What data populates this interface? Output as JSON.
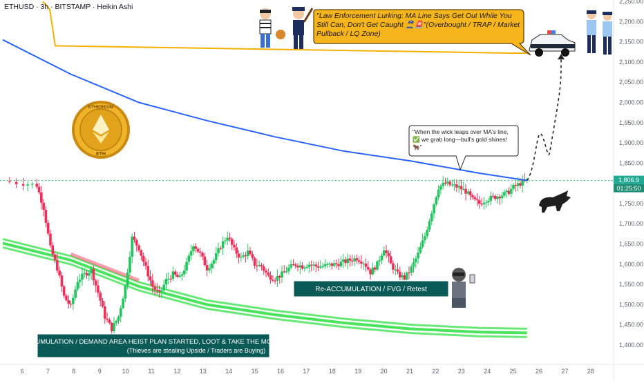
{
  "header": {
    "symbol_line": "ETHUSD · 3h · BITSTAMP · Heikin Ashi"
  },
  "colors": {
    "bull": "#22c55e",
    "bear": "#ef2f5a",
    "ma_line": "#2962ff",
    "orange_line": "#f5b000",
    "last_price_label": "#22ab94",
    "time_label": "#1e8c73",
    "green_band": "#35e04a",
    "red_band": "#ff4d6d",
    "zone_box": "#0a5a57"
  },
  "chart_data": {
    "type": "candlestick",
    "y_axis": {
      "range": [
        1375,
        2260
      ],
      "ticks": [
        2250,
        2200,
        2150,
        2100,
        2050,
        2000,
        1950,
        1900,
        1850,
        1750,
        1700,
        1650,
        1600,
        1550,
        1500,
        1450,
        1400
      ],
      "tick_labels": [
        "2,250.00",
        "2,200.00",
        "2,150.00",
        "2,100.00",
        "2,050.00",
        "2,000.00",
        "1,950.00",
        "1,900.00",
        "1,850.00",
        "1,750.00",
        "1,700.00",
        "1,650.00",
        "1,600.00",
        "1,550.00",
        "1,500.00",
        "1,450.00",
        "1,400.00"
      ]
    },
    "x_axis": {
      "day_labels": [
        "6",
        "7",
        "8",
        "9",
        "10",
        "11",
        "12",
        "13",
        "14",
        "15",
        "16",
        "17",
        "18",
        "19",
        "20",
        "21",
        "22",
        "23",
        "24",
        "25",
        "26",
        "27",
        "28"
      ]
    },
    "last_price": {
      "label": "1,806.9",
      "value": 1806.9,
      "countdown": "01:25:50"
    },
    "candle_close_path": [
      [
        0,
        1805
      ],
      [
        3,
        1800
      ],
      [
        5,
        1795
      ],
      [
        6,
        1740
      ],
      [
        7,
        1640
      ],
      [
        8,
        1590
      ],
      [
        9,
        1520
      ],
      [
        10,
        1495
      ],
      [
        11,
        1560
      ],
      [
        12,
        1575
      ],
      [
        13,
        1585
      ],
      [
        14,
        1530
      ],
      [
        15,
        1470
      ],
      [
        16,
        1440
      ],
      [
        17,
        1470
      ],
      [
        18,
        1545
      ],
      [
        19,
        1665
      ],
      [
        20,
        1640
      ],
      [
        21,
        1590
      ],
      [
        22,
        1545
      ],
      [
        23,
        1525
      ],
      [
        24,
        1560
      ],
      [
        25,
        1575
      ],
      [
        26,
        1565
      ],
      [
        27,
        1600
      ],
      [
        28,
        1650
      ],
      [
        29,
        1625
      ],
      [
        30,
        1590
      ],
      [
        31,
        1610
      ],
      [
        32,
        1645
      ],
      [
        33,
        1670
      ],
      [
        34,
        1635
      ],
      [
        35,
        1615
      ],
      [
        36,
        1630
      ],
      [
        37,
        1600
      ],
      [
        38,
        1595
      ],
      [
        39,
        1570
      ],
      [
        40,
        1565
      ],
      [
        41,
        1575
      ],
      [
        42,
        1590
      ],
      [
        43,
        1600
      ],
      [
        44,
        1595
      ],
      [
        45,
        1600
      ],
      [
        46,
        1595
      ],
      [
        47,
        1595
      ],
      [
        48,
        1598
      ],
      [
        49,
        1600
      ],
      [
        50,
        1605
      ],
      [
        51,
        1610
      ],
      [
        52,
        1615
      ],
      [
        53,
        1605
      ],
      [
        54,
        1580
      ],
      [
        55,
        1600
      ],
      [
        56,
        1640
      ],
      [
        57,
        1600
      ],
      [
        58,
        1575
      ],
      [
        59,
        1565
      ],
      [
        60,
        1590
      ],
      [
        61,
        1625
      ],
      [
        62,
        1670
      ],
      [
        63,
        1730
      ],
      [
        64,
        1790
      ],
      [
        65,
        1800
      ],
      [
        66,
        1795
      ],
      [
        67,
        1790
      ],
      [
        68,
        1780
      ],
      [
        69,
        1760
      ],
      [
        70,
        1750
      ],
      [
        71,
        1760
      ],
      [
        72,
        1765
      ],
      [
        73,
        1770
      ],
      [
        74,
        1775
      ],
      [
        75,
        1790
      ],
      [
        76,
        1800
      ],
      [
        77,
        1806.9
      ]
    ],
    "ma_line": [
      [
        0,
        2155
      ],
      [
        10,
        2070
      ],
      [
        20,
        2000
      ],
      [
        30,
        1955
      ],
      [
        40,
        1915
      ],
      [
        50,
        1880
      ],
      [
        60,
        1855
      ],
      [
        70,
        1825
      ],
      [
        77,
        1807
      ]
    ],
    "orange_line": [
      [
        0,
        2250
      ],
      [
        1,
        2230
      ],
      [
        2,
        2140
      ],
      [
        75,
        2122
      ],
      [
        77,
        2122
      ]
    ],
    "green_band": [
      [
        0,
        1652
      ],
      [
        10,
        1610
      ],
      [
        20,
        1545
      ],
      [
        30,
        1500
      ],
      [
        40,
        1475
      ],
      [
        50,
        1455
      ],
      [
        60,
        1440
      ],
      [
        70,
        1432
      ],
      [
        77,
        1430
      ]
    ],
    "projection": [
      [
        77,
        1806.9
      ],
      [
        79,
        1910
      ],
      [
        80,
        1880
      ],
      [
        81,
        1960
      ],
      [
        82,
        2120
      ]
    ],
    "zone_labels": {
      "accumulation": "ACCUMULATION / DEMAND AREA HEIST PLAN STARTED, LOOT & TAKE THE MONEY",
      "accumulation_sub": "(Thieves are stealing Upside / Traders are Buying)",
      "reaccumulation": "Re-ACCUMULATION / FVG / Retest"
    },
    "annotations": {
      "top_note": "\"Law Enforcement Lurking: MA Line Says Get Out While You Still Can, Don't Get Caught 👮‍♂️🚨\"(Overbought / TRAP / Market Pullback / LQ Zone)",
      "bubble_note": "\"When the wick leaps over MA's line, ✅ we grab long—bull's gold shines! 🐂\""
    },
    "logo_text": [
      "ETHEREUM",
      "ETH"
    ]
  }
}
